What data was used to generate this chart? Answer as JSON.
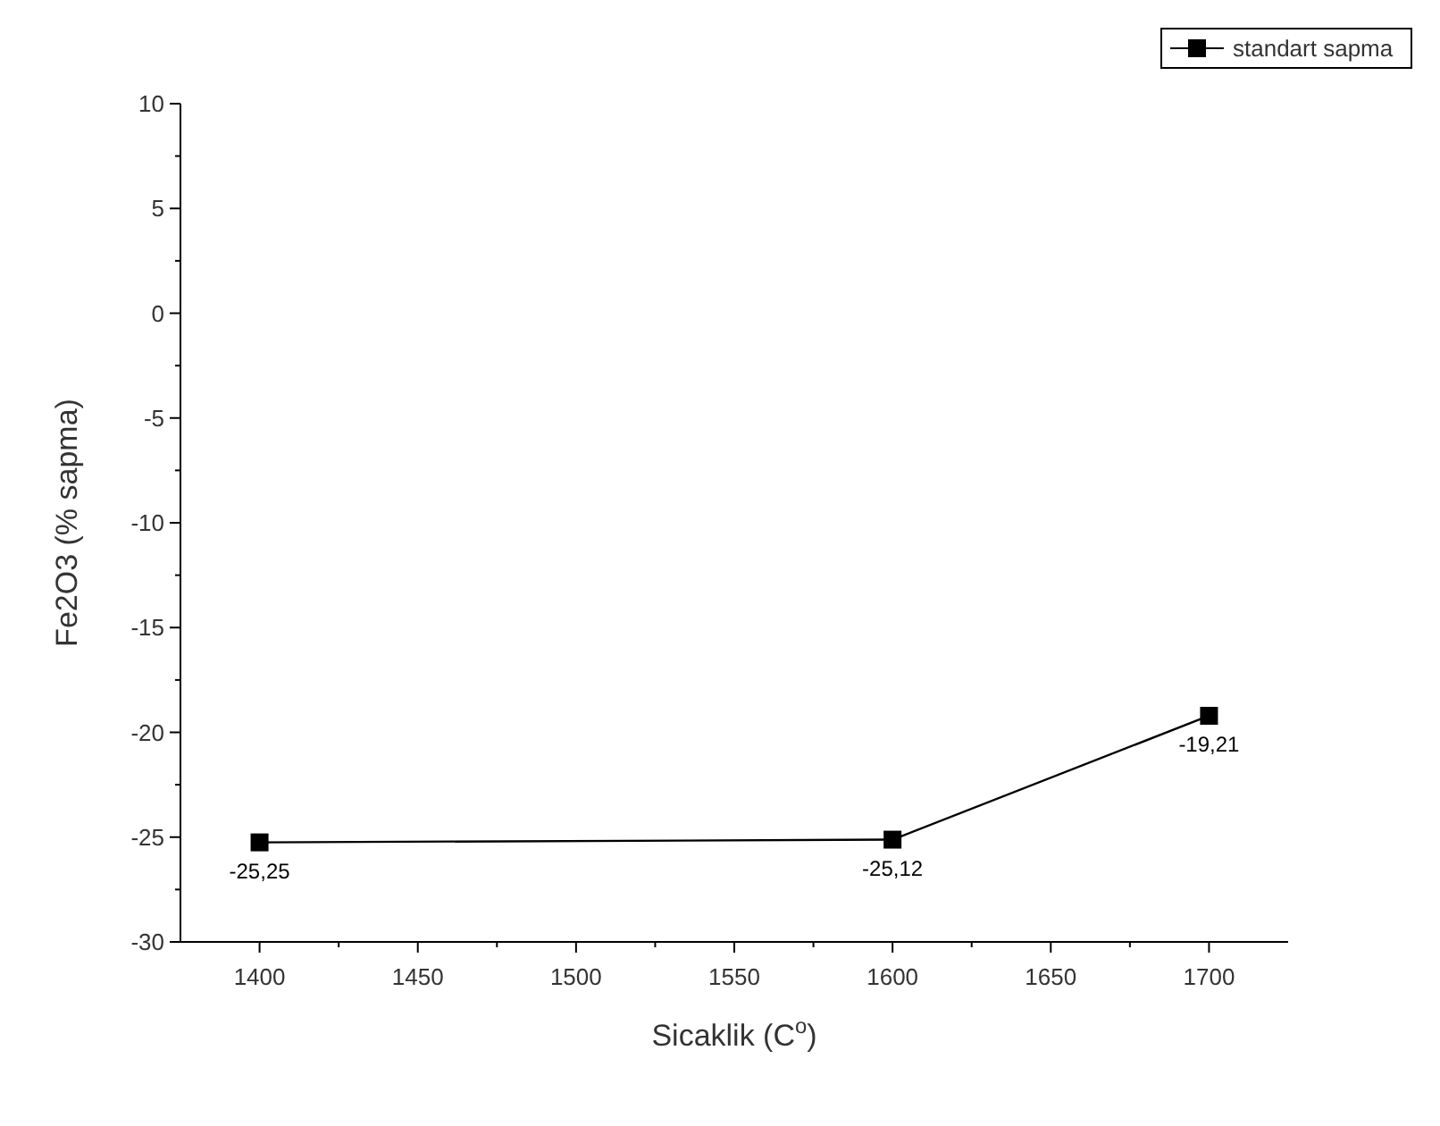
{
  "chart_data": {
    "type": "line",
    "xlabel": "Sicaklik (C$^{o}$)",
    "ylabel": "Fe2O3 (% sapma)",
    "x": [
      1400,
      1600,
      1700
    ],
    "series": [
      {
        "name": "standart sapma",
        "color": "#000000",
        "values": [
          -25.25,
          -25.12,
          -19.21
        ],
        "value_labels": [
          "-25,25",
          "-25,12",
          "-19,21"
        ]
      }
    ],
    "xlim": [
      1375,
      1725
    ],
    "xticks": [
      1400,
      1450,
      1500,
      1550,
      1600,
      1650,
      1700
    ],
    "ylim": [
      -30,
      10
    ],
    "yticks": [
      -30,
      -25,
      -20,
      -15,
      -10,
      -5,
      0,
      5,
      10
    ],
    "grid": false,
    "legend": "top right",
    "marker": "square",
    "line_style": "solid"
  }
}
